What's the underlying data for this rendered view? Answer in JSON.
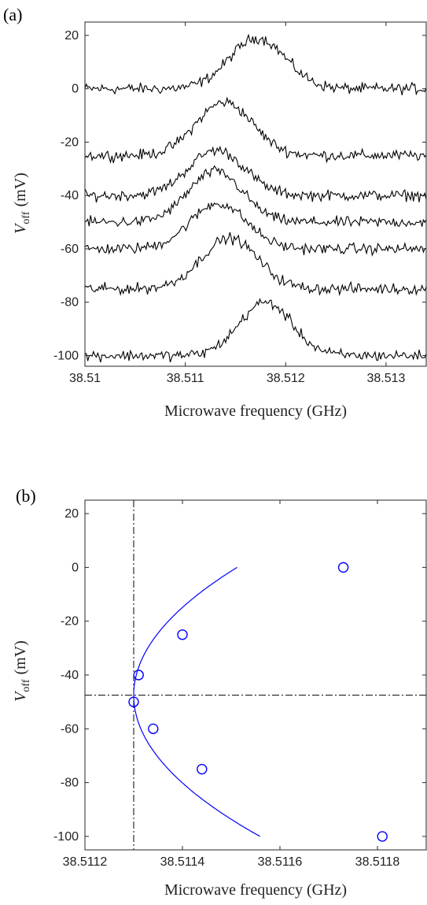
{
  "chart_data": [
    {
      "type": "line",
      "panel_label": "(a)",
      "xlabel": "Microwave frequency (GHz)",
      "ylabel_main": "V",
      "ylabel_sub": "off",
      "ylabel_unit": "(mV)",
      "xlim": [
        38.51,
        38.5134
      ],
      "ylim": [
        -104,
        25
      ],
      "xticks": [
        38.51,
        38.511,
        38.512,
        38.513
      ],
      "xtick_labels": [
        "38.51",
        "38.511",
        "38.512",
        "38.513"
      ],
      "yticks": [
        20,
        0,
        -20,
        -40,
        -60,
        -80,
        -100
      ],
      "ytick_labels": [
        "20",
        "0",
        "-20",
        "-40",
        "-60",
        "-80",
        "-100"
      ],
      "series": [
        {
          "offset": 0,
          "center": 38.51172,
          "peak_height": 19,
          "width": 0.00028
        },
        {
          "offset": -25,
          "center": 38.51139,
          "peak_height": 20,
          "width": 0.00028
        },
        {
          "offset": -40,
          "center": 38.51131,
          "peak_height": 17,
          "width": 0.00028
        },
        {
          "offset": -50,
          "center": 38.5113,
          "peak_height": 19,
          "width": 0.00027
        },
        {
          "offset": -60,
          "center": 38.51133,
          "peak_height": 17,
          "width": 0.00028
        },
        {
          "offset": -75,
          "center": 38.51144,
          "peak_height": 19,
          "width": 0.00028
        },
        {
          "offset": -100,
          "center": 38.5118,
          "peak_height": 20,
          "width": 0.00026
        }
      ]
    },
    {
      "type": "scatter",
      "panel_label": "(b)",
      "xlabel": "Microwave frequency (GHz)",
      "ylabel_main": "V",
      "ylabel_sub": "off",
      "ylabel_unit": "(mV)",
      "xlim": [
        38.5112,
        38.5119
      ],
      "ylim": [
        -105,
        25
      ],
      "xticks": [
        38.5112,
        38.5114,
        38.5116,
        38.5118
      ],
      "xtick_labels": [
        "38.5112",
        "38.5114",
        "38.5116",
        "38.5118"
      ],
      "yticks": [
        20,
        0,
        -20,
        -40,
        -60,
        -80,
        -100
      ],
      "ytick_labels": [
        "20",
        "0",
        "-20",
        "-40",
        "-60",
        "-80",
        "-100"
      ],
      "points": [
        {
          "x": 38.51173,
          "y": 0
        },
        {
          "x": 38.5114,
          "y": -25
        },
        {
          "x": 38.51131,
          "y": -40
        },
        {
          "x": 38.5113,
          "y": -50
        },
        {
          "x": 38.51134,
          "y": -60
        },
        {
          "x": 38.51144,
          "y": -75
        },
        {
          "x": 38.51181,
          "y": -100
        }
      ],
      "fit": {
        "vertex_x": 38.5113,
        "vertex_y": -47.5,
        "coef": 9.4e-08
      },
      "vline_x": 38.5113,
      "hline_y": -47.5,
      "colors": {
        "fit": "#0000ff",
        "markers": "#0000ff",
        "reference_lines": "#000000"
      }
    }
  ]
}
